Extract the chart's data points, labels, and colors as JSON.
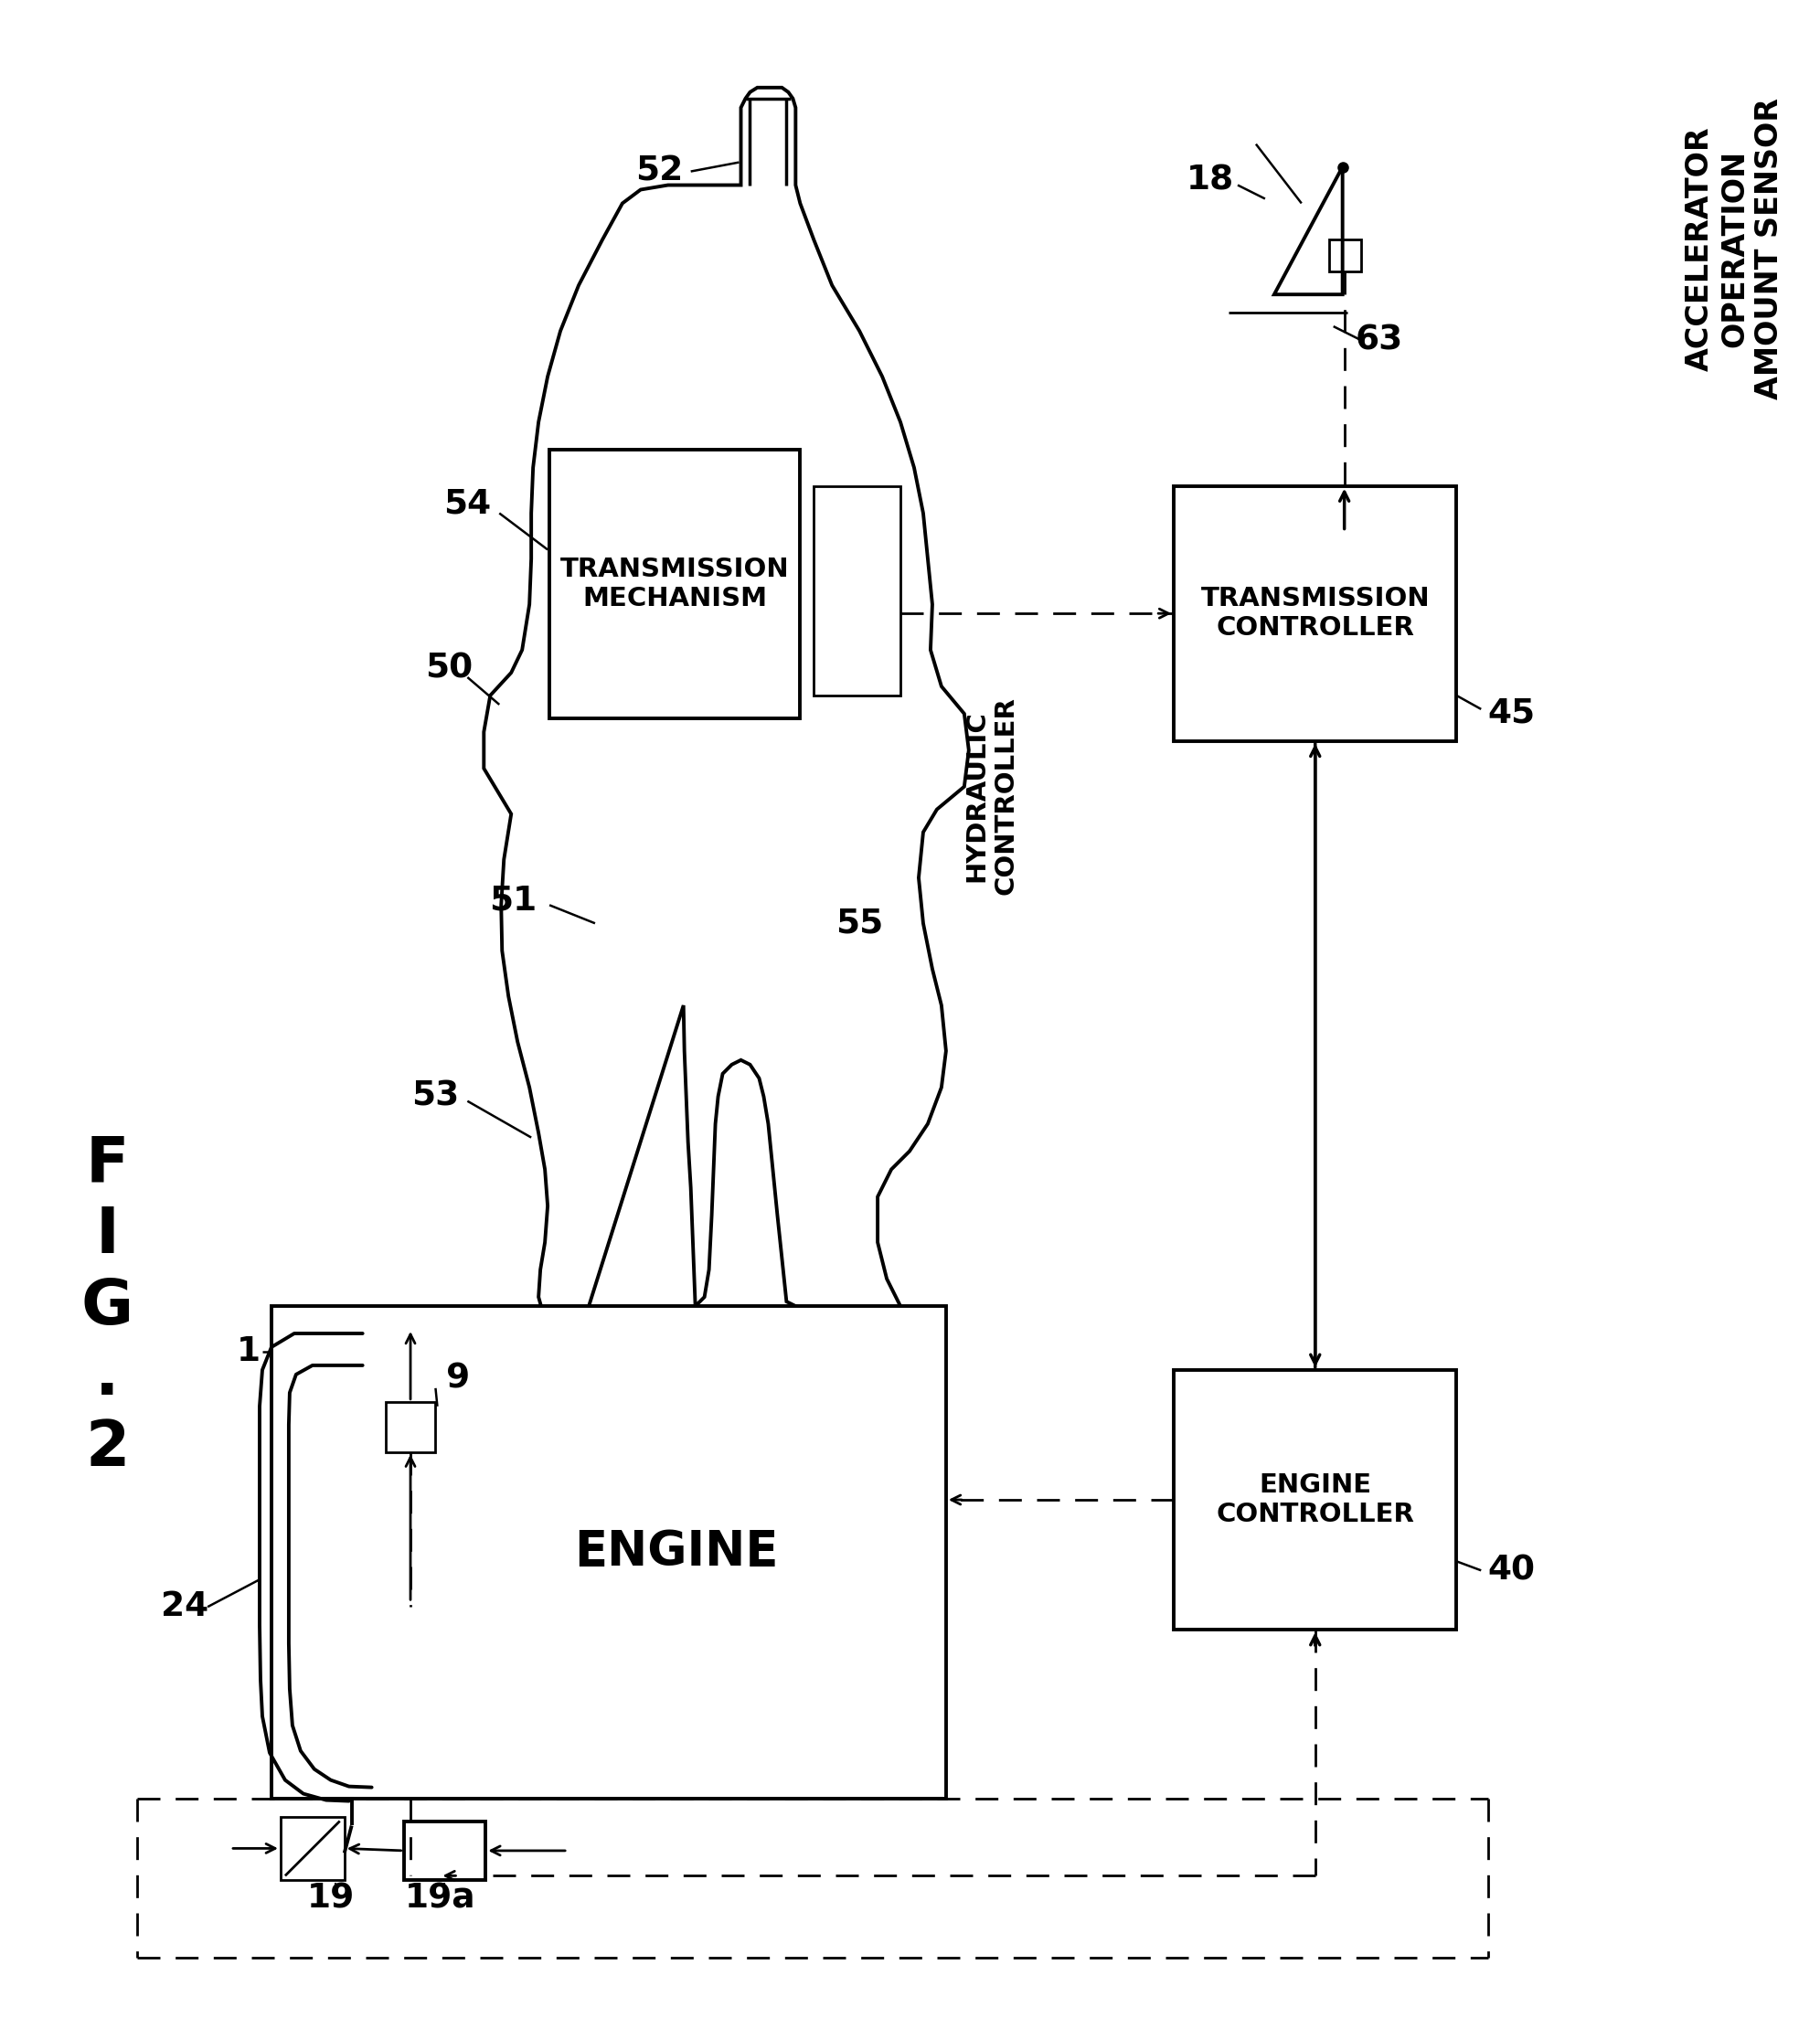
{
  "bg_color": "#ffffff",
  "labels": {
    "transmission_mechanism": "TRANSMISSION\nMECHANISM",
    "hydraulic_controller": "HYDRAULIC\nCONTROLLER",
    "transmission_controller": "TRANSMISSION\nCONTROLLER",
    "engine_controller": "ENGINE\nCONTROLLER",
    "engine": "ENGINE",
    "accelerator": "ACCELERATOR\nOPERATION\nAMOUNT SENSOR",
    "n52": "52",
    "n54": "54",
    "n50": "50",
    "n51": "51",
    "n53": "53",
    "n55": "55",
    "n45": "45",
    "n40": "40",
    "n1": "1",
    "n9": "9",
    "n24": "24",
    "n19": "19",
    "n19a": "19a",
    "n18": "18",
    "n63": "63"
  }
}
